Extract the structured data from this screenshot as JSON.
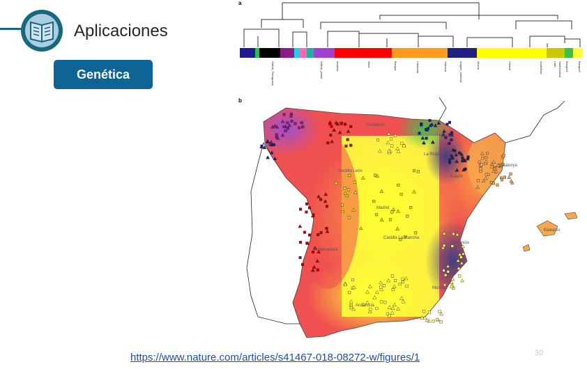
{
  "header": {
    "title": "Aplicaciones",
    "icon": "book-icon",
    "accent_color": "#17677e"
  },
  "badge": {
    "label": "Genética",
    "color": "#0e6497"
  },
  "figure": {
    "panel_a_label": "a",
    "panel_b_label": "b",
    "dendrogram_labels": [
      "Galicia_Portuguesa",
      "Galicia_phase",
      "Asturias",
      "West",
      "Basque",
      "Catalonia",
      "Valencia",
      "Aragon_Valencia",
      "Murcia",
      "Central",
      "SouthEast",
      "Latin",
      "NorthCentral",
      "Basque1",
      "Basque2"
    ],
    "cluster_colors": [
      "#1c1c8c",
      "#19c84a",
      "#000000",
      "#8b1a8b",
      "#19d2e6",
      "#ff69b4",
      "#20b0a0",
      "#a040d0",
      "#ff0000",
      "#ff9a1f",
      "#202080",
      "#ffff00",
      "#ffe000",
      "#40c040"
    ],
    "region_labels": [
      "Cantabria",
      "Castilla León",
      "La Rioja",
      "Navarra",
      "Catalunya",
      "Aragón",
      "Madrid",
      "Castilla La Mancha",
      "Extremadura",
      "Valencia",
      "Murcia",
      "Andalucía",
      "Baleares"
    ]
  },
  "footer": {
    "link_text": "https://www.nature.com/articles/s41467-018-08272-w/figures/1",
    "page_number": "30"
  }
}
